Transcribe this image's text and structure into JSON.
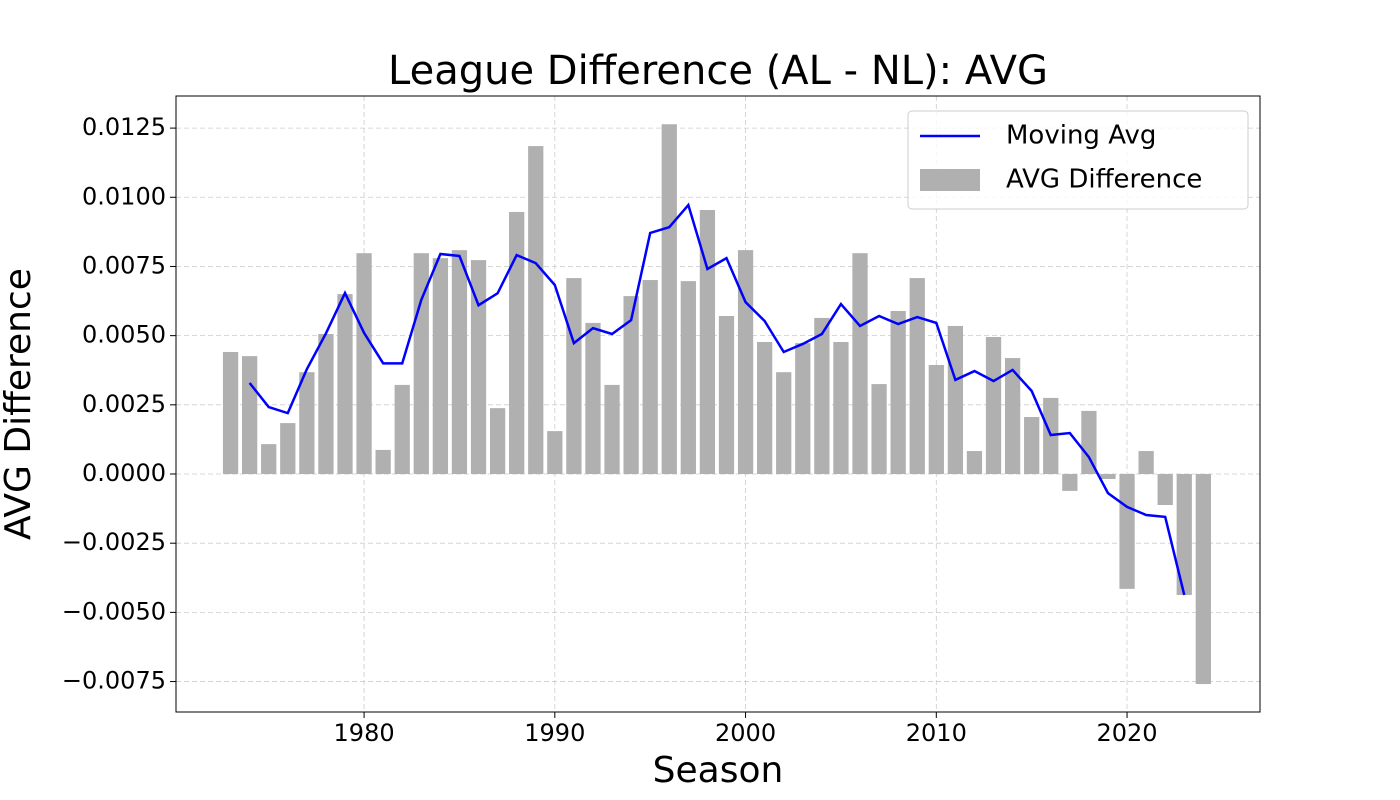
{
  "chart_data": {
    "type": "bar_line",
    "title": "League Difference (AL - NL): AVG",
    "x_label": "Season",
    "y_label": "AVG Difference",
    "x": [
      1973,
      1974,
      1975,
      1976,
      1977,
      1978,
      1979,
      1980,
      1981,
      1982,
      1983,
      1984,
      1985,
      1986,
      1987,
      1988,
      1989,
      1990,
      1991,
      1992,
      1993,
      1994,
      1995,
      1996,
      1997,
      1998,
      1999,
      2000,
      2001,
      2002,
      2003,
      2004,
      2005,
      2006,
      2007,
      2008,
      2009,
      2010,
      2011,
      2012,
      2013,
      2014,
      2015,
      2016,
      2017,
      2018,
      2019,
      2020,
      2021,
      2022,
      2023,
      2024
    ],
    "series": [
      {
        "name": "Moving Avg",
        "kind": "line",
        "color": "#0000ff",
        "values": [
          null,
          0.00329,
          0.00242,
          0.0022,
          0.00379,
          0.00508,
          0.00654,
          0.0051,
          0.004,
          0.004,
          0.00629,
          0.00795,
          0.00788,
          0.0061,
          0.00653,
          0.00791,
          0.00762,
          0.00683,
          0.00473,
          0.00527,
          0.00506,
          0.00556,
          0.00871,
          0.00892,
          0.00972,
          0.00741,
          0.0078,
          0.00621,
          0.00553,
          0.00441,
          0.0047,
          0.00506,
          0.00614,
          0.00535,
          0.00571,
          0.00542,
          0.00567,
          0.00546,
          0.0034,
          0.00372,
          0.00336,
          0.00376,
          0.003,
          0.00141,
          0.00148,
          0.00061,
          -0.00069,
          -0.00119,
          -0.00148,
          -0.00155,
          -0.00437,
          null
        ]
      },
      {
        "name": "AVG Difference",
        "kind": "bar",
        "color": "#b0b0b0",
        "values": [
          0.00441,
          0.00426,
          0.00108,
          0.00184,
          0.00368,
          0.00506,
          0.0065,
          0.00798,
          0.00087,
          0.00322,
          0.00798,
          0.0078,
          0.00809,
          0.00773,
          0.00238,
          0.00947,
          0.01185,
          0.00155,
          0.00708,
          0.00546,
          0.00322,
          0.00643,
          0.00701,
          0.01264,
          0.00697,
          0.00954,
          0.00571,
          0.00809,
          0.00477,
          0.00368,
          0.00473,
          0.00564,
          0.00477,
          0.00798,
          0.00325,
          0.00589,
          0.00708,
          0.00394,
          0.00535,
          0.00083,
          0.00495,
          0.00419,
          0.00206,
          0.00275,
          -0.00061,
          0.00228,
          -0.00018,
          -0.00415,
          0.00083,
          -0.00112,
          -0.00437,
          -0.00759
        ]
      }
    ],
    "xlim": [
      1970.14,
      2026.97
    ],
    "xticks": [
      1980,
      1990,
      2000,
      2010,
      2020
    ],
    "ylim": [
      -0.0086,
      0.01366
    ],
    "yticks": [
      {
        "value": -0.0075,
        "label": "−0.0075"
      },
      {
        "value": -0.005,
        "label": "−0.0050"
      },
      {
        "value": -0.0025,
        "label": "−0.0025"
      },
      {
        "value": 0,
        "label": "0.0000"
      },
      {
        "value": 0.0025,
        "label": "0.0025"
      },
      {
        "value": 0.005,
        "label": "0.0050"
      },
      {
        "value": 0.0075,
        "label": "0.0075"
      },
      {
        "value": 0.01,
        "label": "0.0100"
      },
      {
        "value": 0.0125,
        "label": "0.0125"
      }
    ],
    "grid": true,
    "legend": "upper right"
  }
}
